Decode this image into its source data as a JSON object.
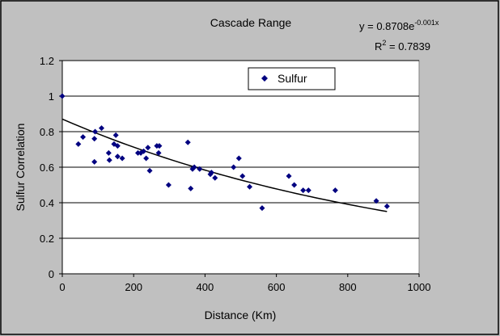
{
  "chart_data": {
    "type": "scatter",
    "title": "Cascade Range",
    "xlabel": "Distance (Km)",
    "ylabel": "Sulfur Correlation",
    "xlim": [
      0,
      1000
    ],
    "ylim": [
      0,
      1.2
    ],
    "x_ticks": [
      "0",
      "200",
      "400",
      "600",
      "800",
      "1000"
    ],
    "y_ticks": [
      "0",
      "0.2",
      "0.4",
      "0.6",
      "0.8",
      "1",
      "1.2"
    ],
    "grid": "horizontal",
    "legend": {
      "placement": "top-center",
      "entries": [
        "Sulfur"
      ]
    },
    "series": [
      {
        "name": "Sulfur",
        "marker": "diamond",
        "color": "#000080",
        "points": [
          [
            0,
            1.0
          ],
          [
            45,
            0.73
          ],
          [
            58,
            0.77
          ],
          [
            90,
            0.63
          ],
          [
            90,
            0.76
          ],
          [
            92,
            0.8
          ],
          [
            110,
            0.82
          ],
          [
            130,
            0.68
          ],
          [
            132,
            0.64
          ],
          [
            145,
            0.73
          ],
          [
            150,
            0.78
          ],
          [
            155,
            0.72
          ],
          [
            155,
            0.66
          ],
          [
            168,
            0.65
          ],
          [
            212,
            0.68
          ],
          [
            220,
            0.68
          ],
          [
            228,
            0.69
          ],
          [
            235,
            0.65
          ],
          [
            240,
            0.71
          ],
          [
            245,
            0.58
          ],
          [
            265,
            0.72
          ],
          [
            270,
            0.68
          ],
          [
            272,
            0.72
          ],
          [
            298,
            0.5
          ],
          [
            352,
            0.74
          ],
          [
            360,
            0.48
          ],
          [
            365,
            0.59
          ],
          [
            370,
            0.6
          ],
          [
            385,
            0.59
          ],
          [
            415,
            0.56
          ],
          [
            418,
            0.57
          ],
          [
            428,
            0.54
          ],
          [
            480,
            0.6
          ],
          [
            495,
            0.65
          ],
          [
            505,
            0.55
          ],
          [
            525,
            0.49
          ],
          [
            560,
            0.37
          ],
          [
            635,
            0.55
          ],
          [
            650,
            0.5
          ],
          [
            675,
            0.47
          ],
          [
            690,
            0.47
          ],
          [
            765,
            0.47
          ],
          [
            880,
            0.41
          ],
          [
            910,
            0.38
          ]
        ]
      }
    ],
    "trendline": {
      "type": "exponential",
      "equation_base": "y = 0.8708e",
      "equation_exponent": "-0.001x",
      "r2_label": "R",
      "r2_sup": "2",
      "r2_value": " = 0.7839",
      "a": 0.8708,
      "b": -0.001,
      "x_range": [
        0,
        910
      ]
    }
  }
}
